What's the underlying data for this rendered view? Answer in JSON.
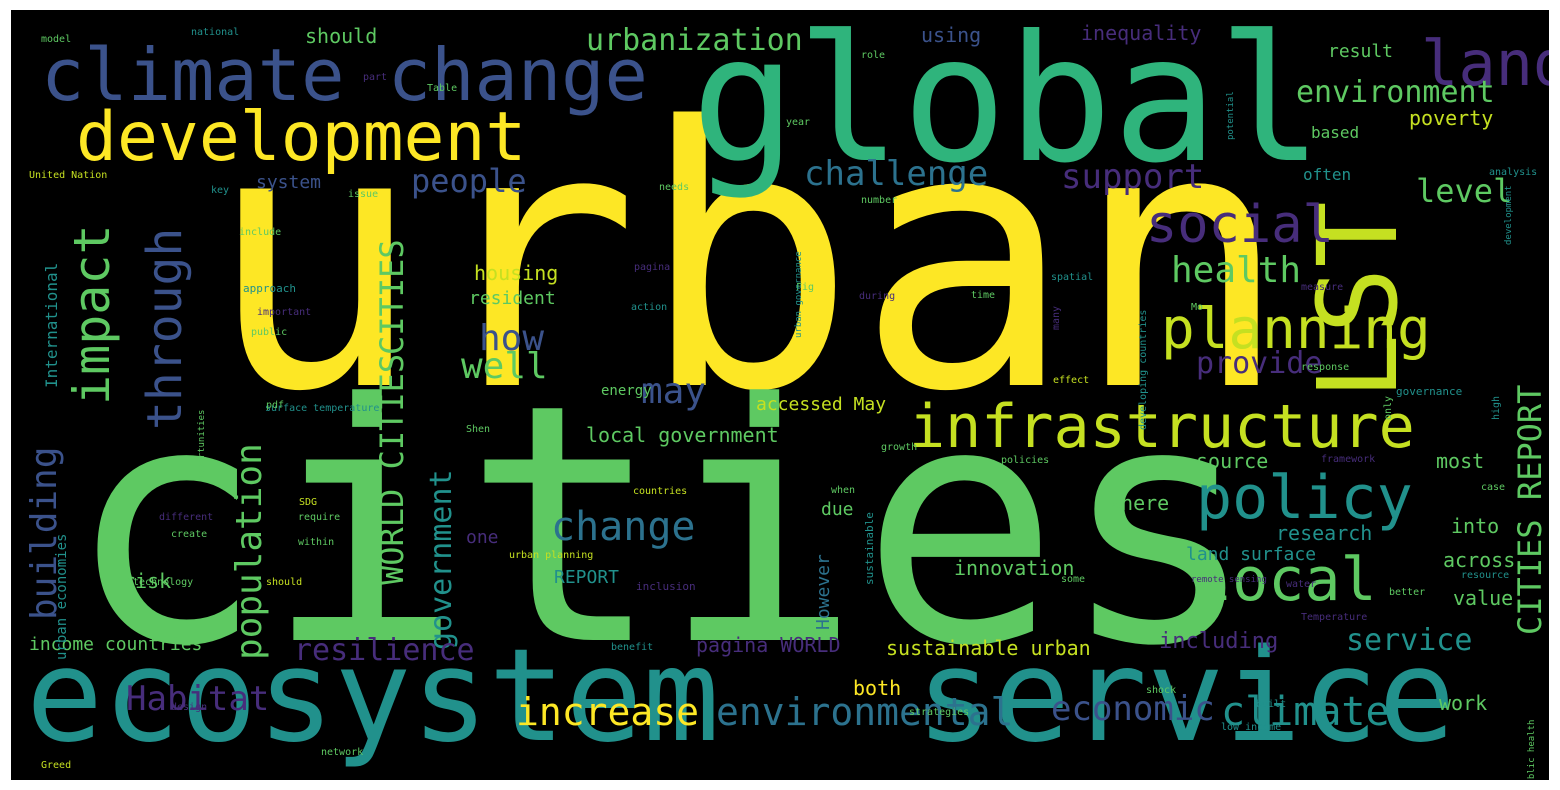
{
  "wordcloud": {
    "background": "#000000",
    "palette": [
      "#fde725",
      "#c5e021",
      "#5ec962",
      "#21918c",
      "#2c728e",
      "#3b528b",
      "#472d7b",
      "#440154"
    ],
    "words": [
      {
        "text": "urban",
        "color": "#fde725"
      },
      {
        "text": "cities",
        "color": "#5ec962"
      },
      {
        "text": "global",
        "color": "#2fb47c"
      },
      {
        "text": "ecosystem",
        "color": "#21918c"
      },
      {
        "text": "service",
        "color": "#21918c"
      },
      {
        "text": "climate change",
        "color": "#3b528b"
      },
      {
        "text": "development",
        "color": "#fde725"
      },
      {
        "text": "LST",
        "color": "#c5e021"
      },
      {
        "text": "land",
        "color": "#472d7b"
      },
      {
        "text": "infrastructure",
        "color": "#c5e021"
      },
      {
        "text": "policy",
        "color": "#21918c"
      },
      {
        "text": "local",
        "color": "#5ec962"
      },
      {
        "text": "planning",
        "color": "#c5e021"
      },
      {
        "text": "social",
        "color": "#472d7b"
      },
      {
        "text": "impact",
        "color": "#5ec962"
      },
      {
        "text": "through",
        "color": "#3b528b"
      },
      {
        "text": "urbanization",
        "color": "#5ec962"
      },
      {
        "text": "environment",
        "color": "#5ec962"
      },
      {
        "text": "challenge",
        "color": "#2c728e"
      },
      {
        "text": "support",
        "color": "#472d7b"
      },
      {
        "text": "people",
        "color": "#3b528b"
      },
      {
        "text": "health",
        "color": "#5ec962"
      },
      {
        "text": "level",
        "color": "#5ec962"
      },
      {
        "text": "how",
        "color": "#3b528b"
      },
      {
        "text": "well",
        "color": "#5ec962"
      },
      {
        "text": "provide",
        "color": "#472d7b"
      },
      {
        "text": "may",
        "color": "#3b528b"
      },
      {
        "text": "CITIES",
        "color": "#5ec962"
      },
      {
        "text": "WORLD CITIES",
        "color": "#5ec962"
      },
      {
        "text": "CITIES REPORT",
        "color": "#5ec962"
      },
      {
        "text": "building",
        "color": "#3b528b"
      },
      {
        "text": "population",
        "color": "#5ec962"
      },
      {
        "text": "government",
        "color": "#21918c"
      },
      {
        "text": "change",
        "color": "#2c728e"
      },
      {
        "text": "resilience",
        "color": "#472d7b"
      },
      {
        "text": "Habitat",
        "color": "#472d7b"
      },
      {
        "text": "increase",
        "color": "#fde725"
      },
      {
        "text": "environmental",
        "color": "#2c728e"
      },
      {
        "text": "economic",
        "color": "#3b528b"
      },
      {
        "text": "climate",
        "color": "#21918c"
      },
      {
        "text": "service",
        "color": "#21918c"
      },
      {
        "text": "local government",
        "color": "#5ec962"
      },
      {
        "text": "accessed May",
        "color": "#c5e021"
      },
      {
        "text": "source",
        "color": "#5ec962"
      },
      {
        "text": "most",
        "color": "#5ec962"
      },
      {
        "text": "where",
        "color": "#5ec962"
      },
      {
        "text": "research",
        "color": "#21918c"
      },
      {
        "text": "into",
        "color": "#5ec962"
      },
      {
        "text": "land surface",
        "color": "#21918c"
      },
      {
        "text": "across",
        "color": "#5ec962"
      },
      {
        "text": "innovation",
        "color": "#5ec962"
      },
      {
        "text": "value",
        "color": "#5ec962"
      },
      {
        "text": "sustainable urban",
        "color": "#c5e021"
      },
      {
        "text": "including",
        "color": "#472d7b"
      },
      {
        "text": "pagina WORLD",
        "color": "#472d7b"
      },
      {
        "text": "both",
        "color": "#fde725"
      },
      {
        "text": "REPORT",
        "color": "#21918c"
      },
      {
        "text": "one",
        "color": "#472d7b"
      },
      {
        "text": "due",
        "color": "#5ec962"
      },
      {
        "text": "However",
        "color": "#2c728e"
      },
      {
        "text": "housing",
        "color": "#c5e021"
      },
      {
        "text": "resident",
        "color": "#5ec962"
      },
      {
        "text": "system",
        "color": "#3b528b"
      },
      {
        "text": "should",
        "color": "#5ec962"
      },
      {
        "text": "using",
        "color": "#3b528b"
      },
      {
        "text": "inequality",
        "color": "#472d7b"
      },
      {
        "text": "result",
        "color": "#5ec962"
      },
      {
        "text": "poverty",
        "color": "#c5e021"
      },
      {
        "text": "based",
        "color": "#5ec962"
      },
      {
        "text": "often",
        "color": "#21918c"
      },
      {
        "text": "work",
        "color": "#5ec962"
      },
      {
        "text": "risk",
        "color": "#5ec962"
      },
      {
        "text": "income countries",
        "color": "#5ec962"
      },
      {
        "text": "International",
        "color": "#21918c"
      },
      {
        "text": "urban economies",
        "color": "#21918c"
      },
      {
        "text": "energy",
        "color": "#5ec962"
      },
      {
        "text": "United Nation",
        "color": "#c5e021"
      },
      {
        "text": "national",
        "color": "#21918c"
      },
      {
        "text": "model",
        "color": "#5ec962"
      },
      {
        "text": "role",
        "color": "#5ec962"
      },
      {
        "text": "analysis",
        "color": "#21918c"
      },
      {
        "text": "needs",
        "color": "#5ec962"
      },
      {
        "text": "issue",
        "color": "#5ec962"
      },
      {
        "text": "include",
        "color": "#5ec962"
      },
      {
        "text": "approach",
        "color": "#21918c"
      },
      {
        "text": "important",
        "color": "#472d7b"
      },
      {
        "text": "public",
        "color": "#5ec962"
      },
      {
        "text": "Fig",
        "color": "#5ec962"
      },
      {
        "text": "during",
        "color": "#472d7b"
      },
      {
        "text": "spatial",
        "color": "#21918c"
      },
      {
        "text": "time",
        "color": "#5ec962"
      },
      {
        "text": "measure",
        "color": "#472d7b"
      },
      {
        "text": "governance",
        "color": "#21918c"
      },
      {
        "text": "response",
        "color": "#5ec962"
      },
      {
        "text": "effect",
        "color": "#c5e021"
      },
      {
        "text": "policies",
        "color": "#5ec962"
      },
      {
        "text": "framework",
        "color": "#472d7b"
      },
      {
        "text": "countries",
        "color": "#c5e021"
      },
      {
        "text": "when",
        "color": "#5ec962"
      },
      {
        "text": "growth",
        "color": "#5ec962"
      },
      {
        "text": "case",
        "color": "#5ec962"
      },
      {
        "text": "resource",
        "color": "#21918c"
      },
      {
        "text": "Temperature",
        "color": "#472d7b"
      },
      {
        "text": "better",
        "color": "#5ec962"
      },
      {
        "text": "water",
        "color": "#472d7b"
      },
      {
        "text": "some",
        "color": "#5ec962"
      },
      {
        "text": "built",
        "color": "#21918c"
      },
      {
        "text": "low income",
        "color": "#21918c"
      },
      {
        "text": "shock",
        "color": "#5ec962"
      },
      {
        "text": "strategies",
        "color": "#5ec962"
      },
      {
        "text": "benefit",
        "color": "#21918c"
      },
      {
        "text": "inclusion",
        "color": "#472d7b"
      },
      {
        "text": "urban planning",
        "color": "#c5e021"
      },
      {
        "text": "require",
        "color": "#5ec962"
      },
      {
        "text": "within",
        "color": "#5ec962"
      },
      {
        "text": "different",
        "color": "#472d7b"
      },
      {
        "text": "create",
        "color": "#5ec962"
      },
      {
        "text": "technology",
        "color": "#5ec962"
      },
      {
        "text": "should",
        "color": "#c5e021"
      },
      {
        "text": "design",
        "color": "#472d7b"
      },
      {
        "text": "Greed",
        "color": "#c5e021"
      },
      {
        "text": "network",
        "color": "#5ec962"
      },
      {
        "text": "surface temperature",
        "color": "#21918c"
      },
      {
        "text": "SDG",
        "color": "#c5e021"
      },
      {
        "text": "pdf",
        "color": "#5ec962"
      },
      {
        "text": "sustainable",
        "color": "#21918c"
      },
      {
        "text": "Mo",
        "color": "#5ec962"
      },
      {
        "text": "Shen",
        "color": "#5ec962"
      },
      {
        "text": "key",
        "color": "#21918c"
      },
      {
        "text": "only",
        "color": "#5ec962"
      },
      {
        "text": "high",
        "color": "#21918c"
      },
      {
        "text": "year",
        "color": "#5ec962"
      },
      {
        "text": "part",
        "color": "#472d7b"
      },
      {
        "text": "Table",
        "color": "#5ec962"
      },
      {
        "text": "number",
        "color": "#5ec962"
      },
      {
        "text": "action",
        "color": "#21918c"
      },
      {
        "text": "many",
        "color": "#472d7b"
      },
      {
        "text": "pagina",
        "color": "#472d7b"
      },
      {
        "text": "urban governance",
        "color": "#21918c"
      },
      {
        "text": "developing countries",
        "color": "#21918c"
      },
      {
        "text": "opportunities",
        "color": "#5ec962"
      },
      {
        "text": "potential",
        "color": "#21918c"
      },
      {
        "text": "public health",
        "color": "#5ec962"
      },
      {
        "text": "development",
        "color": "#21918c"
      },
      {
        "text": "remote sensing",
        "color": "#472d7b"
      }
    ]
  }
}
